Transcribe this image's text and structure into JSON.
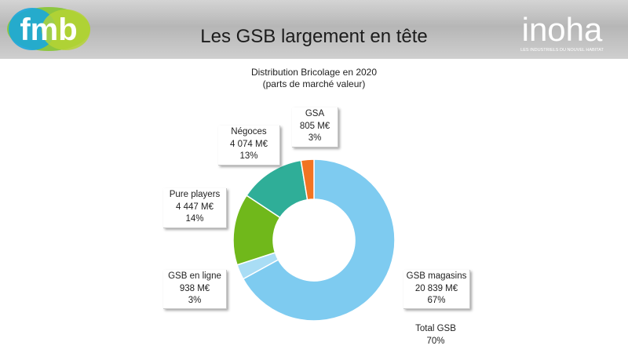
{
  "header": {
    "title": "Les GSB largement en tête",
    "logo_left": "fmb",
    "logo_right": "inoha",
    "logo_right_tagline": "LES INDUSTRIELS DU NOUVEL HABITAT"
  },
  "colors": {
    "gsb_magasins": "#7ecbf0",
    "gsb_en_ligne": "#a9ddf5",
    "pure_players": "#70b81b",
    "negoces": "#2fae98",
    "gsa": "#f27422",
    "fmb_green": "#86c23a",
    "fmb_blue": "#1aa7dc"
  },
  "chart_data": {
    "type": "pie",
    "subtype": "donut",
    "title": "Distribution Bricolage en 2020",
    "subtitle": "(parts de marché valeur)",
    "slices": [
      {
        "name": "GSB magasins",
        "value_label": "20 839  M€",
        "value": 20839,
        "percent": "67%"
      },
      {
        "name": "GSB en ligne",
        "value_label": "938  M€",
        "value": 938,
        "percent": "3%"
      },
      {
        "name": "Pure players",
        "value_label": "4 447  M€",
        "value": 4447,
        "percent": "14%"
      },
      {
        "name": "Négoces",
        "value_label": "4 074  M€",
        "value": 4074,
        "percent": "13%"
      },
      {
        "name": "GSA",
        "value_label": "805  M€",
        "value": 805,
        "percent": "3%"
      }
    ],
    "annotation": {
      "label": "Total GSB",
      "value": "70%"
    }
  }
}
